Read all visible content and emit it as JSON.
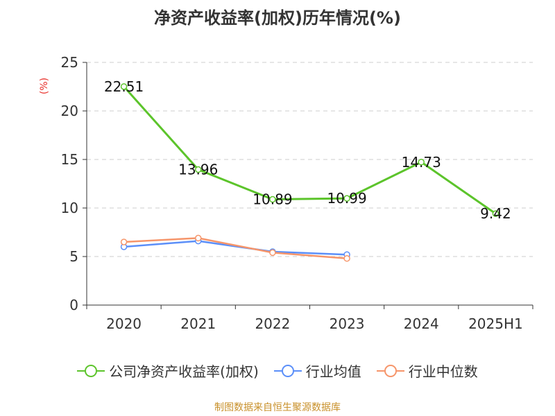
{
  "chart_data": {
    "type": "line",
    "title": "净资产收益率(加权)历年情况(%)",
    "unit_label": "(%)",
    "categories": [
      "2020",
      "2021",
      "2022",
      "2023",
      "2024",
      "2025H1"
    ],
    "ylim": [
      0,
      25
    ],
    "yticks": [
      0,
      5,
      10,
      15,
      20,
      25
    ],
    "grid": true,
    "legend_position": "bottom",
    "series": [
      {
        "name": "公司净资产收益率(加权)",
        "color": "#5cc42b",
        "values": [
          22.51,
          13.96,
          10.89,
          10.99,
          14.73,
          9.42
        ],
        "labels": [
          "22.51",
          "13.96",
          "10.89",
          "10.99",
          "14.73",
          "9.42"
        ]
      },
      {
        "name": "行业均值",
        "color": "#5b8ff9",
        "values": [
          6.0,
          6.6,
          5.5,
          5.2,
          null,
          null
        ]
      },
      {
        "name": "行业中位数",
        "color": "#f6956a",
        "values": [
          6.5,
          6.9,
          5.4,
          4.8,
          null,
          null
        ]
      }
    ]
  },
  "footer": "制图数据来自恒生聚源数据库"
}
